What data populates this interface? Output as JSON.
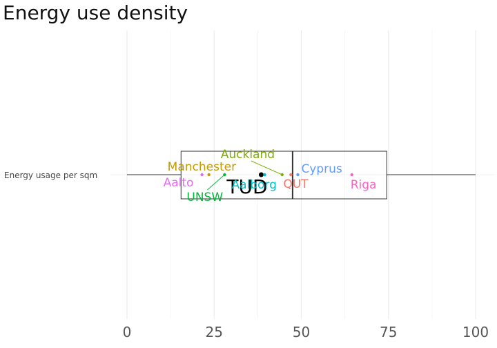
{
  "chart_data": {
    "type": "boxplot",
    "title": "Energy use density",
    "category": "Energy usage per sqm",
    "xlim": [
      0,
      100
    ],
    "x_ticks": [
      "0",
      "25",
      "50",
      "75",
      "100"
    ],
    "grid": true,
    "box": {
      "min": 0,
      "q1": 15.5,
      "median": 47.5,
      "q3": 74.5,
      "max": 100
    },
    "points": [
      {
        "label": "Aalto",
        "value": 21.5,
        "color": "#e76bf3",
        "highlight": false
      },
      {
        "label": "Manchester",
        "value": 23.5,
        "color": "#c49a00",
        "highlight": false
      },
      {
        "label": "UNSW",
        "value": 28,
        "color": "#00ba38",
        "highlight": false
      },
      {
        "label": "TUD",
        "value": 38.5,
        "color": "#000000",
        "highlight": true
      },
      {
        "label": "Aalborg",
        "value": 39.5,
        "color": "#00bfc4",
        "highlight": false
      },
      {
        "label": "Auckland",
        "value": 44.5,
        "color": "#7cae00",
        "highlight": false
      },
      {
        "label": "QUT",
        "value": 47,
        "color": "#f8766d",
        "highlight": false
      },
      {
        "label": "Cyprus",
        "value": 49,
        "color": "#619cff",
        "highlight": false
      },
      {
        "label": "Riga",
        "value": 64.5,
        "color": "#ff61c3",
        "highlight": false
      }
    ]
  }
}
